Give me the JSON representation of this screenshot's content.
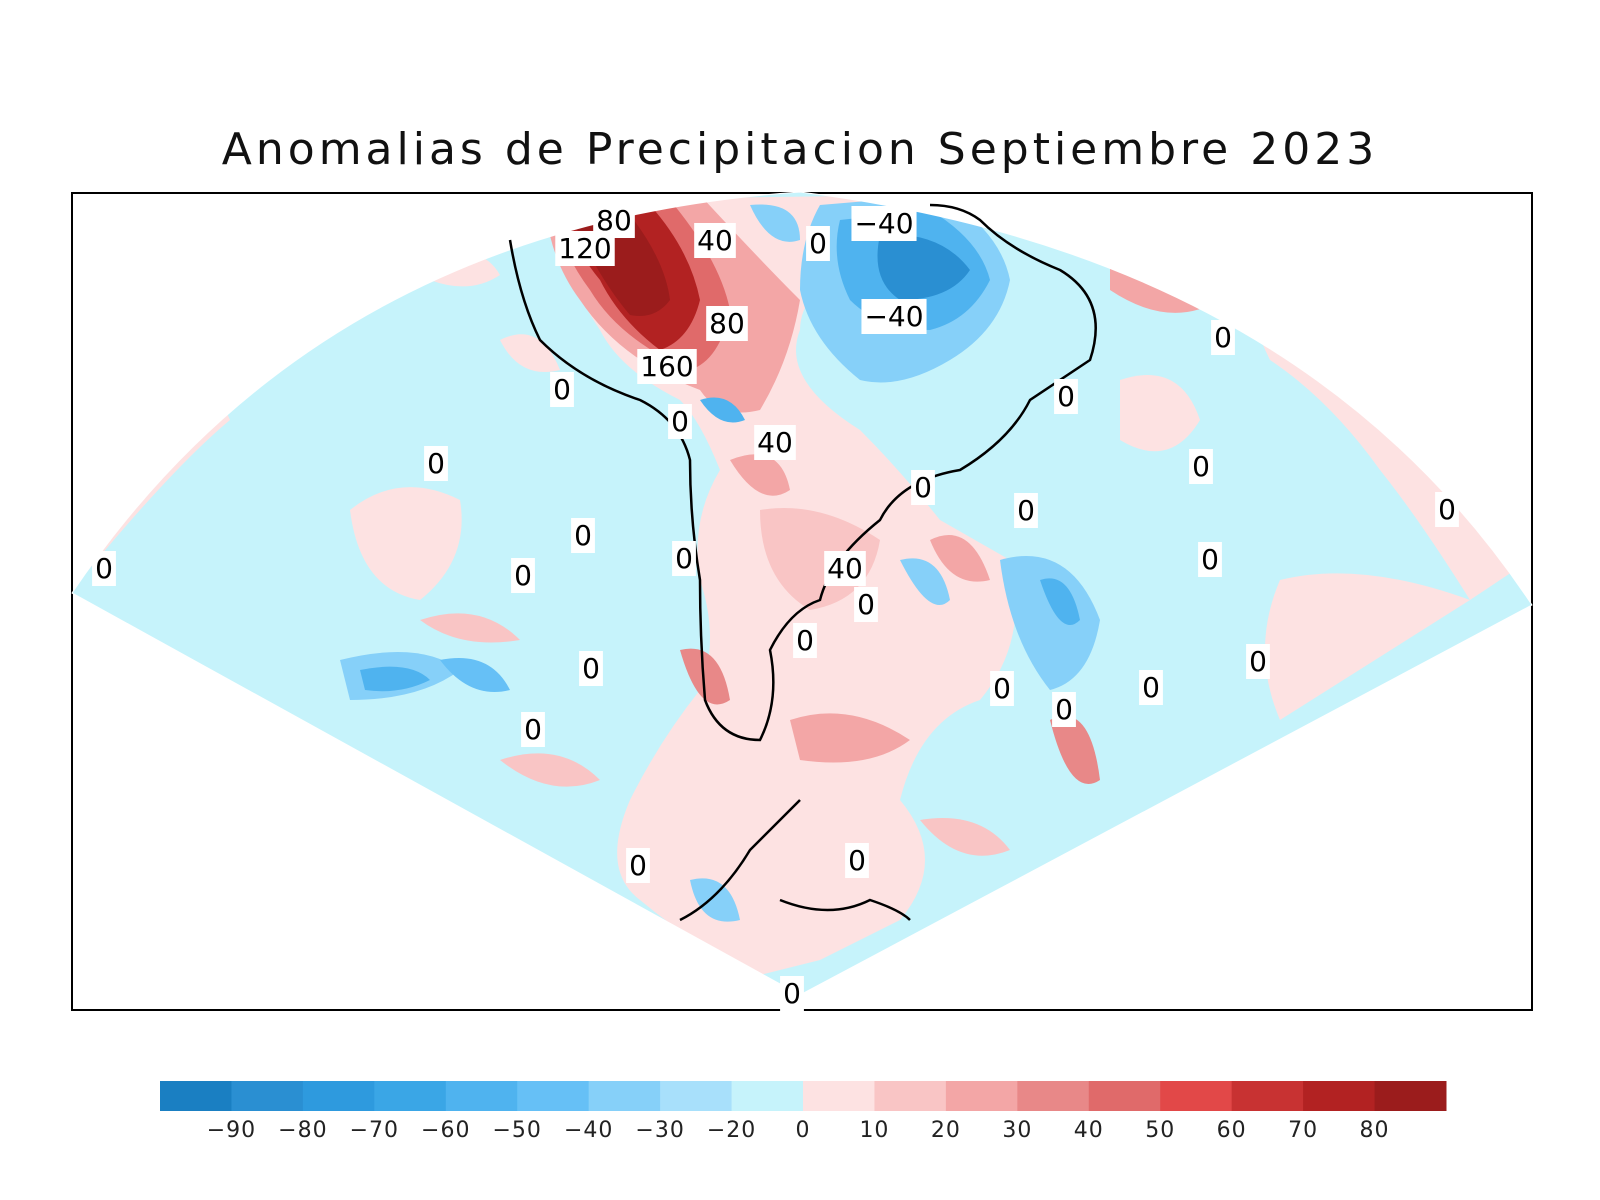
{
  "title": "Anomalias de Precipitacion Septiembre 2023",
  "colorbar": {
    "colors": [
      "#1a7fc2",
      "#2a8fd2",
      "#2e9ade",
      "#3aa6e6",
      "#4fb3ef",
      "#66c0f6",
      "#86d0f9",
      "#a8e0fb",
      "#c6f3fb",
      "#fde2e2",
      "#f9c5c5",
      "#f3a6a6",
      "#e88888",
      "#e06a6a",
      "#e24848",
      "#c83232",
      "#b22222",
      "#9b1c1c"
    ],
    "ticks": [
      "−90",
      "−80",
      "−70",
      "−60",
      "−50",
      "−40",
      "−30",
      "−20",
      "0",
      "10",
      "20",
      "30",
      "40",
      "50",
      "60",
      "70",
      "80"
    ]
  },
  "contour_labels": [
    {
      "text": "80"
    },
    {
      "text": "120"
    },
    {
      "text": "40"
    },
    {
      "text": "0"
    },
    {
      "text": "−40"
    },
    {
      "text": "−40"
    },
    {
      "text": "80"
    },
    {
      "text": "160"
    },
    {
      "text": "0"
    },
    {
      "text": "0"
    },
    {
      "text": "0"
    },
    {
      "text": "40"
    },
    {
      "text": "0"
    },
    {
      "text": "0"
    },
    {
      "text": "0"
    },
    {
      "text": "0"
    },
    {
      "text": "0"
    },
    {
      "text": "0"
    },
    {
      "text": "0"
    },
    {
      "text": "0"
    },
    {
      "text": "0"
    },
    {
      "text": "40"
    },
    {
      "text": "0"
    },
    {
      "text": "0"
    },
    {
      "text": "0"
    },
    {
      "text": "0"
    },
    {
      "text": "0"
    },
    {
      "text": "0"
    },
    {
      "text": "0"
    },
    {
      "text": "0"
    },
    {
      "text": "0"
    },
    {
      "text": "0"
    },
    {
      "text": "0"
    },
    {
      "text": "0"
    },
    {
      "text": "0"
    }
  ]
}
